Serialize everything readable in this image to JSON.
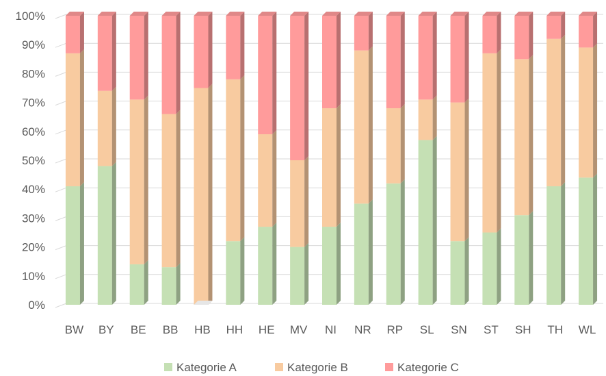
{
  "chart_data": {
    "type": "bar",
    "stacked": true,
    "normalized": true,
    "three_d": true,
    "categories": [
      "BW",
      "BY",
      "BE",
      "BB",
      "HB",
      "HH",
      "HE",
      "MV",
      "NI",
      "NR",
      "RP",
      "SL",
      "SN",
      "ST",
      "SH",
      "TH",
      "WL"
    ],
    "series": [
      {
        "name": "Kategorie A",
        "color": "#c5e0b4",
        "values": [
          41,
          48,
          14,
          13,
          0,
          22,
          27,
          20,
          27,
          35,
          42,
          57,
          22,
          25,
          31,
          41,
          44
        ]
      },
      {
        "name": "Kategorie B",
        "color": "#f8cba0",
        "values": [
          46,
          26,
          57,
          53,
          75,
          56,
          32,
          30,
          41,
          53,
          26,
          14,
          48,
          62,
          54,
          51,
          45
        ]
      },
      {
        "name": "Kategorie C",
        "color": "#ff9b9b",
        "values": [
          13,
          26,
          29,
          34,
          25,
          22,
          41,
          50,
          32,
          12,
          32,
          29,
          30,
          13,
          15,
          8,
          11
        ]
      }
    ],
    "y_ticks": [
      "0%",
      "10%",
      "20%",
      "30%",
      "40%",
      "50%",
      "60%",
      "70%",
      "80%",
      "90%",
      "100%"
    ],
    "ylim": [
      0,
      100
    ],
    "grid": true,
    "legend": "bottom"
  }
}
